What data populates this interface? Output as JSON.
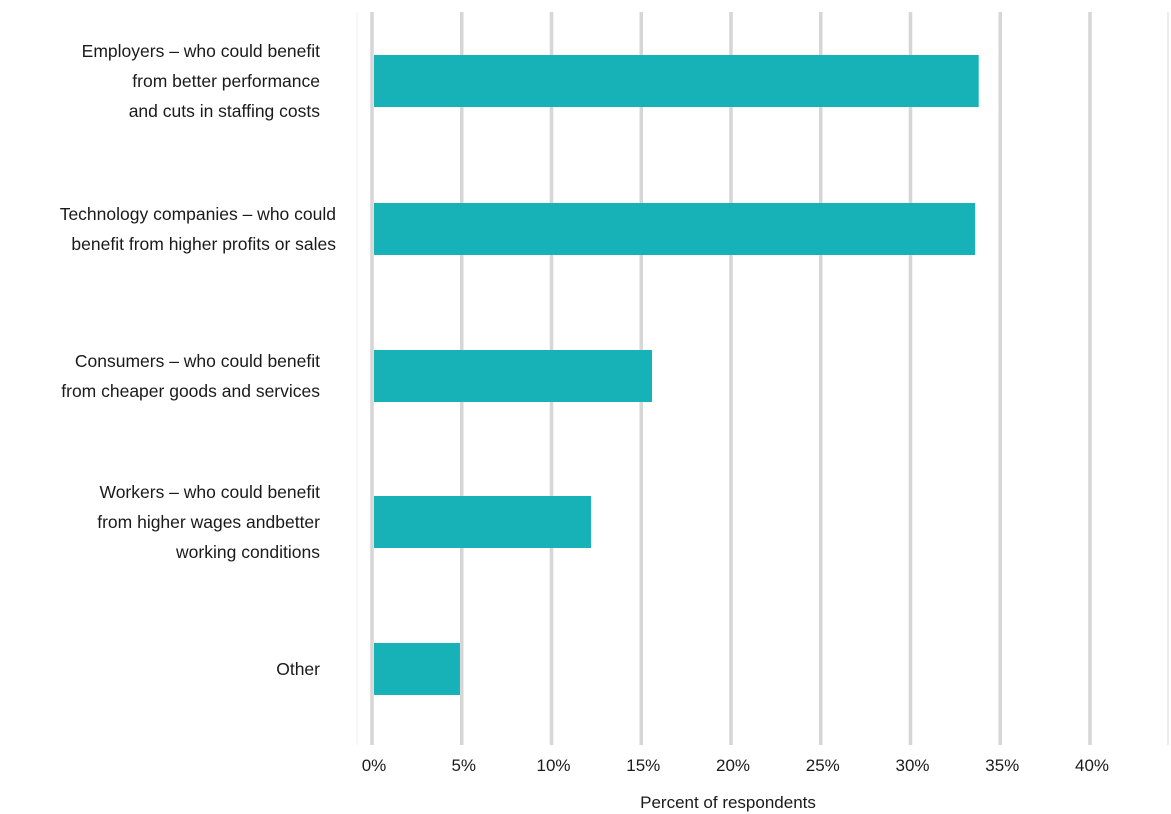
{
  "chart_data": {
    "type": "bar",
    "orientation": "horizontal",
    "categories": [
      [
        "Employers – who could benefit",
        "from better performance",
        "and cuts in staffing costs"
      ],
      [
        "Technology companies – who could",
        "benefit from higher profits or sales"
      ],
      [
        "Consumers – who could benefit",
        "from cheaper goods and services"
      ],
      [
        "Workers – who could benefit",
        "from higher wages andbetter",
        "working conditions"
      ],
      [
        "Other"
      ]
    ],
    "values": [
      33.8,
      33.6,
      15.6,
      12.2,
      4.9
    ],
    "xlim": [
      0,
      40
    ],
    "xticks": [
      0,
      5,
      10,
      15,
      20,
      25,
      30,
      35,
      40
    ],
    "tick_labels": [
      "0%",
      "5%",
      "10%",
      "15%",
      "20%",
      "25%",
      "30%",
      "35%",
      "40%"
    ],
    "xlabel": "Percent of respondents",
    "ylabel": "",
    "title": "",
    "grid": "vertical",
    "legend": "none",
    "bar_color": "#17b1b8",
    "grid_color": "#d6d6d6"
  }
}
